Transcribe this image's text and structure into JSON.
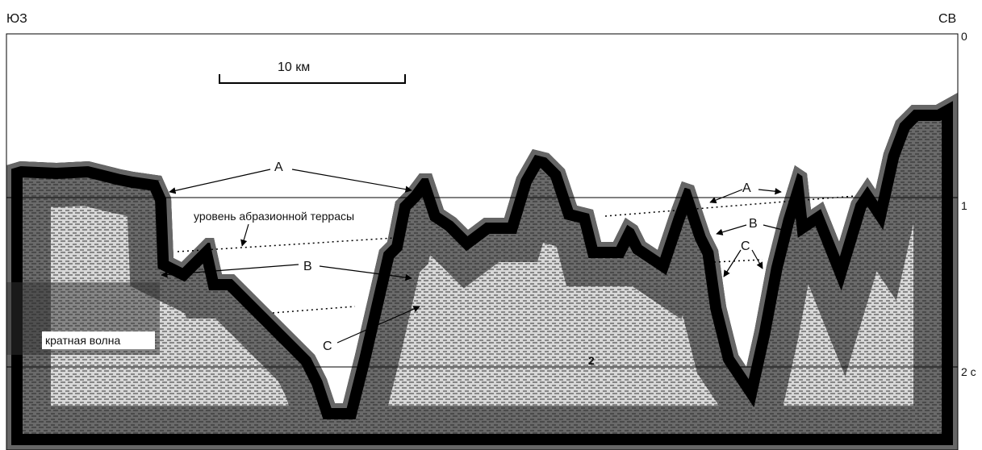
{
  "header": {
    "left": "ЮЗ",
    "right": "СВ"
  },
  "scale_bar": {
    "label": "10 км"
  },
  "time_axis": {
    "t0": "0",
    "t1": "1",
    "t2": "2 с"
  },
  "labels": {
    "a_left": "A",
    "a_right": "A",
    "b_left": "B",
    "b_right": "B",
    "c_left": "C",
    "c_right": "C",
    "terrace": "уровень абразионной террасы",
    "multiple": "кратная волна",
    "marker": "2"
  }
}
